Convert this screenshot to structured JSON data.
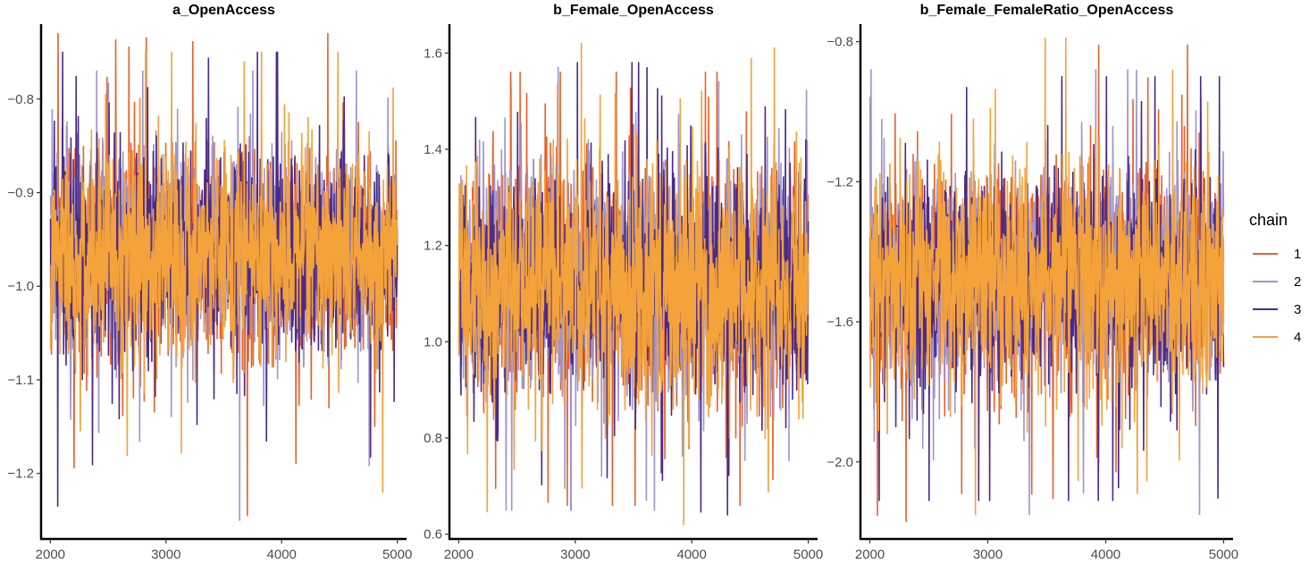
{
  "legend": {
    "title": "chain",
    "placement": "right",
    "entries": [
      {
        "label": "1",
        "color": "#e8622c"
      },
      {
        "label": "2",
        "color": "#9f95cf"
      },
      {
        "label": "3",
        "color": "#4b2b8a"
      },
      {
        "label": "4",
        "color": "#f4a23a"
      }
    ]
  },
  "chart_data": [
    {
      "type": "line",
      "title": "a_OpenAccess",
      "xlabel": "",
      "ylabel": "",
      "xlim": [
        1920,
        5080
      ],
      "ylim": [
        -1.27,
        -0.72
      ],
      "xticks": [
        2000,
        3000,
        4000,
        5000
      ],
      "xtick_labels": [
        "2000",
        "3000",
        "4000",
        "5000"
      ],
      "yticks": [
        -1.2,
        -1.1,
        -1.0,
        -0.9,
        -0.8
      ],
      "ytick_labels": [
        "−1.2",
        "−1.1",
        "−1.0",
        "−0.9",
        "−0.8"
      ],
      "grid": false,
      "x_range": [
        2001,
        5000
      ],
      "series_center": -0.965,
      "series_sd": 0.055,
      "series": [
        {
          "name": "1",
          "min": -1.245,
          "max": -0.73
        },
        {
          "name": "2",
          "min": -1.25,
          "max": -0.77
        },
        {
          "name": "3",
          "min": -1.235,
          "max": -0.75
        },
        {
          "name": "4",
          "min": -1.22,
          "max": -0.75
        }
      ]
    },
    {
      "type": "line",
      "title": "b_Female_OpenAccess",
      "xlabel": "",
      "ylabel": "",
      "xlim": [
        1920,
        5080
      ],
      "ylim": [
        0.59,
        1.66
      ],
      "xticks": [
        2000,
        3000,
        4000,
        5000
      ],
      "xtick_labels": [
        "2000",
        "3000",
        "4000",
        "5000"
      ],
      "yticks": [
        0.6,
        0.8,
        1.0,
        1.2,
        1.4,
        1.6
      ],
      "ytick_labels": [
        "0.6",
        "0.8",
        "1.0",
        "1.2",
        "1.4",
        "1.6"
      ],
      "grid": false,
      "x_range": [
        2001,
        5000
      ],
      "series_center": 1.12,
      "series_sd": 0.12,
      "series": [
        {
          "name": "1",
          "min": 0.66,
          "max": 1.56
        },
        {
          "name": "2",
          "min": 0.65,
          "max": 1.57
        },
        {
          "name": "3",
          "min": 0.64,
          "max": 1.58
        },
        {
          "name": "4",
          "min": 0.62,
          "max": 1.62
        }
      ]
    },
    {
      "type": "line",
      "title": "b_Female_FemaleRatio_OpenAccess",
      "xlabel": "",
      "ylabel": "",
      "xlim": [
        1920,
        5080
      ],
      "ylim": [
        -2.22,
        -0.75
      ],
      "xticks": [
        2000,
        3000,
        4000,
        5000
      ],
      "xtick_labels": [
        "2000",
        "3000",
        "4000",
        "5000"
      ],
      "yticks": [
        -2.0,
        -1.6,
        -1.2,
        -0.8
      ],
      "ytick_labels": [
        "−2.0",
        "−1.6",
        "−1.2",
        "−0.8"
      ],
      "grid": false,
      "x_range": [
        2001,
        5000
      ],
      "series_center": -1.48,
      "series_sd": 0.16,
      "series": [
        {
          "name": "1",
          "min": -2.17,
          "max": -0.81
        },
        {
          "name": "2",
          "min": -2.15,
          "max": -0.88
        },
        {
          "name": "3",
          "min": -2.11,
          "max": -0.9
        },
        {
          "name": "4",
          "min": -2.15,
          "max": -0.79
        }
      ]
    }
  ]
}
